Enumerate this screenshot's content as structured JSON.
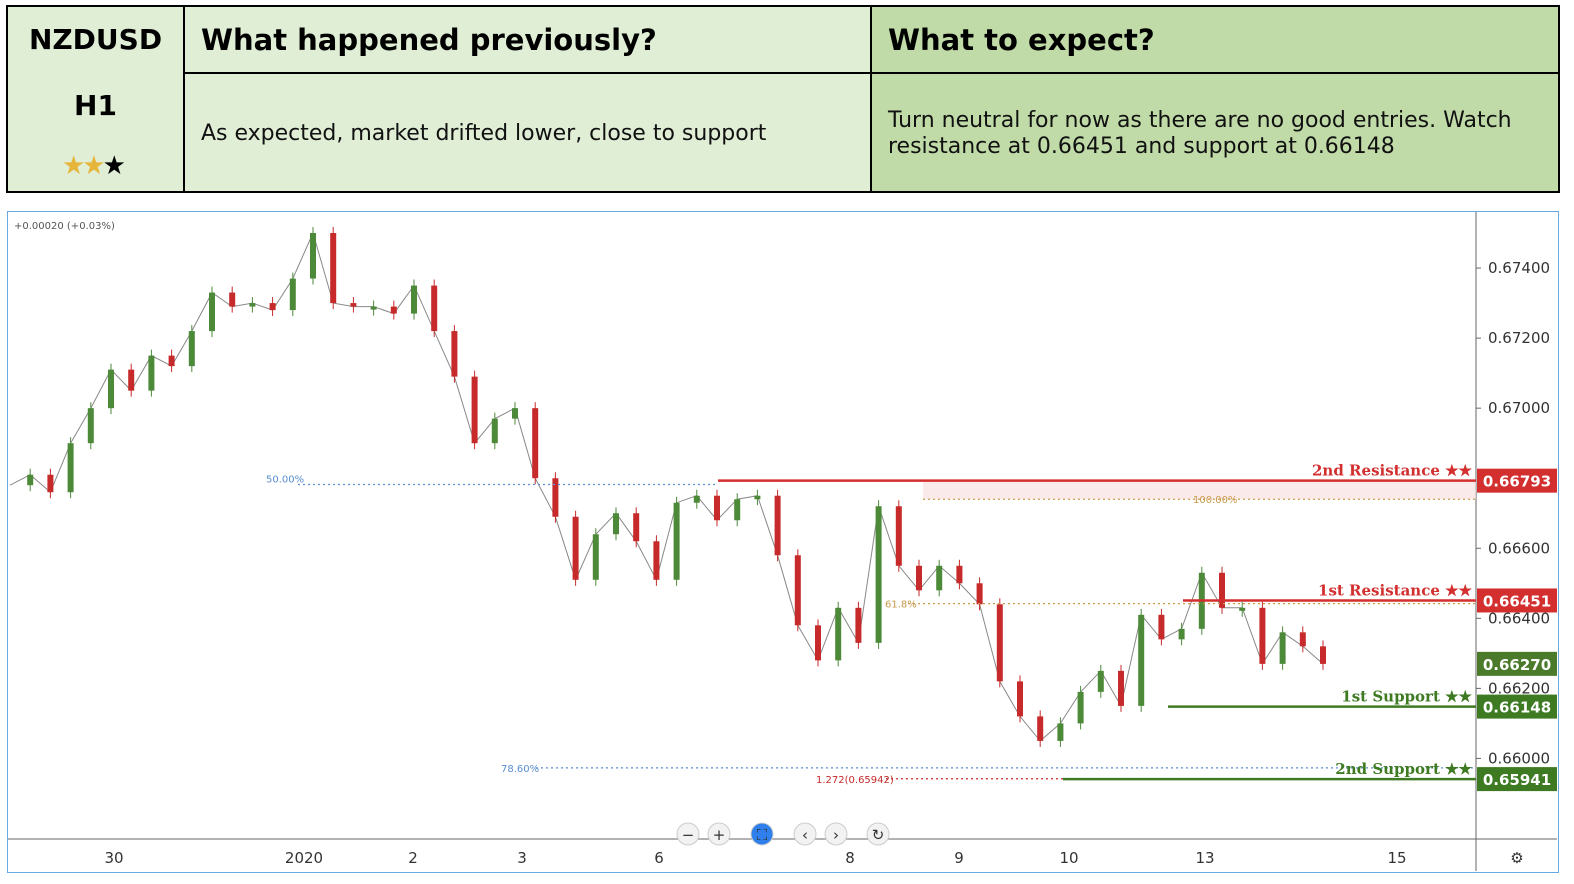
{
  "header": {
    "pair": "NZDUSD",
    "timeframe": "H1",
    "rating": {
      "filled": 2,
      "total": 3,
      "filled_glyphs": "★★",
      "empty_glyphs": "★"
    },
    "prev_title": "What happened previously?",
    "prev_text": "As expected, market drifted lower, close to support",
    "exp_title": "What to expect?",
    "exp_line1": "Turn neutral for now as there are no good entries. Watch",
    "exp_line2": "resistance at 0.66451 and support at 0.66148"
  },
  "colors": {
    "resistance": "#d32f2f",
    "support": "#3d7a22",
    "current": "#4a7a2a",
    "candle_up": "#4c8a3a",
    "candle_down": "#c62a2a",
    "fib_blue": "#5a8ed0",
    "fib_orange": "#c89a4a"
  },
  "chart_data": {
    "type": "line",
    "symbol": "NZDUSD",
    "change_label": "+0.00020 (+0.03%)",
    "x_labels": [
      "30",
      "2020",
      "2",
      "3",
      "6",
      "8",
      "9",
      "10",
      "13",
      "15"
    ],
    "y_ticks": [
      "0.67400",
      "0.67200",
      "0.67000",
      "0.66600",
      "0.66400",
      "0.66200",
      "0.66000"
    ],
    "ylim": [
      0.6577,
      0.6756
    ],
    "series": [
      {
        "values": [
          0.6678,
          0.6681,
          0.6676,
          0.669,
          0.67,
          0.6711,
          0.6705,
          0.6715,
          0.6712,
          0.6722,
          0.6733,
          0.6729,
          0.673,
          0.6728,
          0.6737,
          0.675,
          0.673,
          0.6729,
          0.6729,
          0.6727,
          0.6735,
          0.6722,
          0.6709,
          0.669,
          0.6697,
          0.67,
          0.668,
          0.6669,
          0.6651,
          0.6664,
          0.667,
          0.6662,
          0.6651,
          0.6673,
          0.6675,
          0.6668,
          0.6674,
          0.6675,
          0.6658,
          0.6638,
          0.6628,
          0.6643,
          0.6633,
          0.6672,
          0.6655,
          0.6648,
          0.6655,
          0.665,
          0.6644,
          0.6622,
          0.6612,
          0.6605,
          0.661,
          0.6619,
          0.6625,
          0.6615,
          0.6641,
          0.6634,
          0.6637,
          0.6653,
          0.6643,
          0.6643,
          0.6627,
          0.6636,
          0.6632,
          0.6627
        ]
      }
    ],
    "levels": [
      {
        "label": "2nd Resistance ★★",
        "value": "0.66793",
        "kind": "resistance"
      },
      {
        "label": "1st Resistance ★★",
        "value": "0.66451",
        "kind": "resistance"
      },
      {
        "label": "1st Support ★★",
        "value": "0.66148",
        "kind": "support"
      },
      {
        "label": "2nd Support ★★",
        "value": "0.65941",
        "kind": "support"
      }
    ],
    "current_price": "0.66270",
    "fib_labels": [
      {
        "text": "50.00%"
      },
      {
        "text": "100.00%"
      },
      {
        "text": "61.8%"
      },
      {
        "text": "78.60%"
      },
      {
        "text": "1.272(0.65942)"
      }
    ],
    "toolbar": {
      "zoom_out": "−",
      "zoom_in": "+",
      "reset": "⛶",
      "prev": "‹",
      "next": "›",
      "refresh": "↻"
    },
    "settings_icon": "⚙"
  }
}
